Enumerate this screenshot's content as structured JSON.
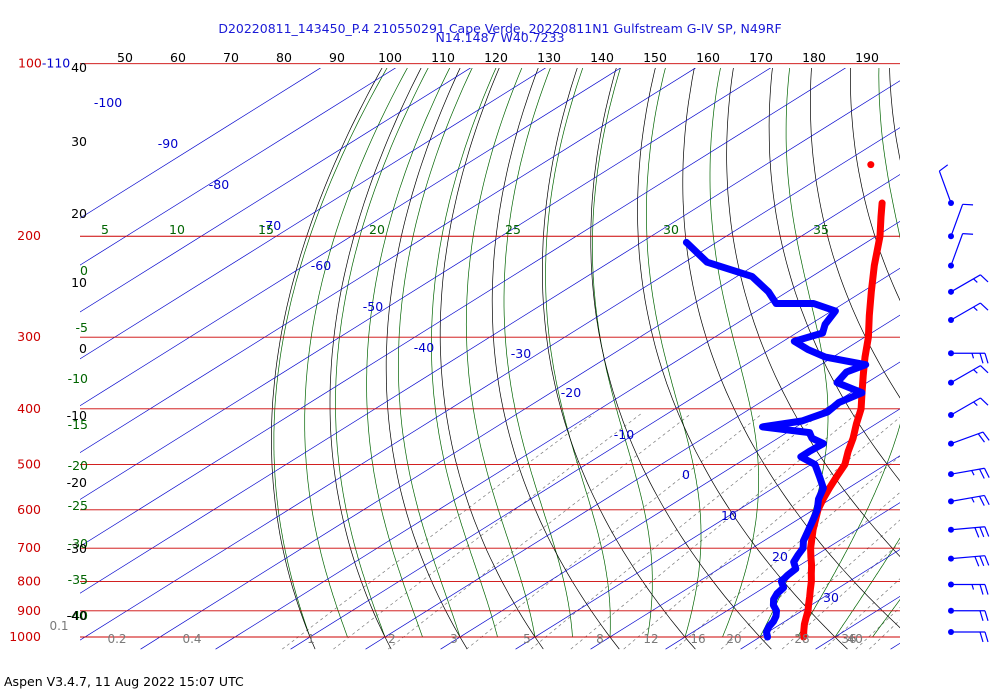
{
  "header": {
    "line1": "D20220811_143450_P.4 210550291 Cape Verde, 20220811N1 Gulfstream G-IV SP, N49RF",
    "line2": "N14.1487 W40.7233"
  },
  "footer": {
    "text": "Aspen V3.4.7, 11 Aug 2022  15:07 UTC"
  },
  "colors": {
    "temperature": "#ff0000",
    "dewpoint": "#0000ff",
    "isobar": "#cc0000",
    "isotherm": "#0000cc",
    "dry_adiabat": "#000000",
    "moist_adiabat": "#006400",
    "mixing_ratio": "#7a7a7a",
    "wind_barb": "#0000ff"
  },
  "chart_data": {
    "type": "skew-t log-p",
    "pressure_levels_hpa": [
      100,
      200,
      300,
      400,
      500,
      600,
      700,
      800,
      900,
      1000
    ],
    "pressure_labels": [
      "100-110",
      "200",
      "300",
      "400",
      "500",
      "600",
      "700",
      "800",
      "900",
      "1000"
    ],
    "temperature_labels_c": [
      "-100",
      "-90",
      "-80",
      "-70",
      "-60",
      "-50",
      "-40",
      "-30",
      "-20",
      "-10",
      "0",
      "10",
      "20",
      "30",
      "40"
    ],
    "temperature_labels_f": [
      "50",
      "60",
      "70",
      "80",
      "90",
      "100",
      "110",
      "120",
      "130",
      "140",
      "150",
      "160",
      "170",
      "180",
      "190"
    ],
    "theta_w_labels": [
      "5",
      "10",
      "15",
      "20",
      "25",
      "30",
      "35"
    ],
    "left_green_labels": [
      "0",
      "-5",
      "-10",
      "-15",
      "-20",
      "-25",
      "-30",
      "-35",
      "-40"
    ],
    "left_black_labels": [
      "40",
      "30",
      "20",
      "10",
      "0",
      "-10",
      "-20",
      "-30",
      "-40"
    ],
    "mixing_ratio_labels": [
      "0.1",
      "0.2",
      "0.4",
      "1",
      "2",
      "3",
      "5",
      "8",
      "12",
      "16",
      "20",
      "28",
      "36",
      "40"
    ],
    "temperature_profile": [
      {
        "p": 1000,
        "t": 25.8
      },
      {
        "p": 975,
        "t": 24.5
      },
      {
        "p": 950,
        "t": 23.2
      },
      {
        "p": 925,
        "t": 22.0
      },
      {
        "p": 900,
        "t": 20.8
      },
      {
        "p": 875,
        "t": 19.4
      },
      {
        "p": 850,
        "t": 18.0
      },
      {
        "p": 825,
        "t": 16.5
      },
      {
        "p": 800,
        "t": 15.0
      },
      {
        "p": 775,
        "t": 13.3
      },
      {
        "p": 750,
        "t": 11.6
      },
      {
        "p": 725,
        "t": 9.7
      },
      {
        "p": 700,
        "t": 7.8
      },
      {
        "p": 650,
        "t": 4.2
      },
      {
        "p": 600,
        "t": 0.6
      },
      {
        "p": 575,
        "t": -1.0
      },
      {
        "p": 550,
        "t": -2.5
      },
      {
        "p": 525,
        "t": -4.0
      },
      {
        "p": 500,
        "t": -5.5
      },
      {
        "p": 475,
        "t": -7.8
      },
      {
        "p": 450,
        "t": -10.0
      },
      {
        "p": 425,
        "t": -12.6
      },
      {
        "p": 400,
        "t": -15.2
      },
      {
        "p": 375,
        "t": -18.5
      },
      {
        "p": 350,
        "t": -22.0
      },
      {
        "p": 325,
        "t": -25.7
      },
      {
        "p": 300,
        "t": -29.5
      },
      {
        "p": 275,
        "t": -34.0
      },
      {
        "p": 250,
        "t": -38.8
      },
      {
        "p": 225,
        "t": -44.0
      },
      {
        "p": 200,
        "t": -49.5
      },
      {
        "p": 185,
        "t": -53.5
      },
      {
        "p": 175,
        "t": -56.3
      }
    ],
    "temperature_isolated_point": {
      "p": 150,
      "t": -66.0
    },
    "dewpoint_profile": [
      {
        "p": 1000,
        "td": 21.0
      },
      {
        "p": 980,
        "td": 19.8
      },
      {
        "p": 960,
        "td": 19.0
      },
      {
        "p": 940,
        "td": 18.5
      },
      {
        "p": 920,
        "td": 17.7
      },
      {
        "p": 900,
        "td": 16.6
      },
      {
        "p": 880,
        "td": 15.0
      },
      {
        "p": 860,
        "td": 13.8
      },
      {
        "p": 840,
        "td": 13.0
      },
      {
        "p": 820,
        "td": 12.6
      },
      {
        "p": 800,
        "td": 11.0
      },
      {
        "p": 780,
        "td": 10.5
      },
      {
        "p": 760,
        "td": 10.2
      },
      {
        "p": 740,
        "td": 8.5
      },
      {
        "p": 720,
        "td": 7.6
      },
      {
        "p": 700,
        "td": 6.8
      },
      {
        "p": 680,
        "td": 5.3
      },
      {
        "p": 650,
        "td": 3.6
      },
      {
        "p": 620,
        "td": 1.8
      },
      {
        "p": 600,
        "td": 0.5
      },
      {
        "p": 575,
        "td": -1.6
      },
      {
        "p": 550,
        "td": -3.3
      },
      {
        "p": 525,
        "td": -6.3
      },
      {
        "p": 500,
        "td": -9.5
      },
      {
        "p": 485,
        "td": -13.0
      },
      {
        "p": 475,
        "td": -13.0
      },
      {
        "p": 460,
        "td": -12.8
      },
      {
        "p": 450,
        "td": -15.5
      },
      {
        "p": 440,
        "td": -17.0
      },
      {
        "p": 430,
        "td": -24.5
      },
      {
        "p": 420,
        "td": -20.5
      },
      {
        "p": 405,
        "td": -19.0
      },
      {
        "p": 390,
        "td": -19.5
      },
      {
        "p": 375,
        "td": -18.5
      },
      {
        "p": 360,
        "td": -24.0
      },
      {
        "p": 345,
        "td": -25.0
      },
      {
        "p": 335,
        "td": -24.0
      },
      {
        "p": 325,
        "td": -31.0
      },
      {
        "p": 315,
        "td": -35.0
      },
      {
        "p": 305,
        "td": -38.5
      },
      {
        "p": 295,
        "td": -36.5
      },
      {
        "p": 285,
        "td": -38.0
      },
      {
        "p": 270,
        "td": -39.5
      },
      {
        "p": 262,
        "td": -44.0
      },
      {
        "p": 262,
        "td": -49.0
      },
      {
        "p": 250,
        "td": -52.5
      },
      {
        "p": 235,
        "td": -58.0
      },
      {
        "p": 222,
        "td": -67.0
      },
      {
        "p": 205,
        "td": -74.0
      }
    ],
    "wind_barbs": [
      {
        "p": 175,
        "dir": 340,
        "kt": 10
      },
      {
        "p": 200,
        "dir": 20,
        "kt": 10
      },
      {
        "p": 225,
        "dir": 20,
        "kt": 10
      },
      {
        "p": 250,
        "dir": 60,
        "kt": 15
      },
      {
        "p": 280,
        "dir": 60,
        "kt": 15
      },
      {
        "p": 320,
        "dir": 90,
        "kt": 25
      },
      {
        "p": 360,
        "dir": 60,
        "kt": 15
      },
      {
        "p": 410,
        "dir": 60,
        "kt": 15
      },
      {
        "p": 460,
        "dir": 70,
        "kt": 20
      },
      {
        "p": 520,
        "dir": 80,
        "kt": 25
      },
      {
        "p": 580,
        "dir": 80,
        "kt": 25
      },
      {
        "p": 650,
        "dir": 85,
        "kt": 30
      },
      {
        "p": 730,
        "dir": 85,
        "kt": 30
      },
      {
        "p": 810,
        "dir": 90,
        "kt": 25
      },
      {
        "p": 900,
        "dir": 90,
        "kt": 20
      },
      {
        "p": 980,
        "dir": 90,
        "kt": 20
      }
    ]
  }
}
